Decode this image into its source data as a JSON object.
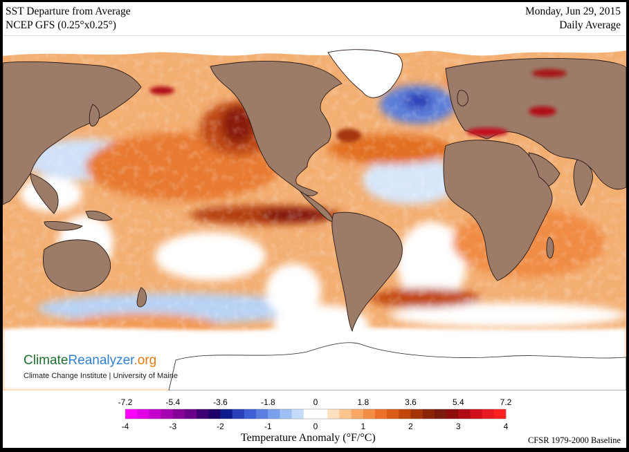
{
  "header": {
    "title_line1": "SST Departure from Average",
    "title_line2": "NCEP GFS (0.25°x0.25°)",
    "date": "Monday, Jun 29, 2015",
    "period": "Daily Average"
  },
  "branding": {
    "name_part1": "Climate",
    "name_part2": "Reanalyzer",
    "name_part3": ".org",
    "subtitle": "Climate Change Institute | University of Maine"
  },
  "legend": {
    "f_ticks": [
      "-7.2",
      "-5.4",
      "-3.6",
      "-1.8",
      "0",
      "1.8",
      "3.6",
      "5.4",
      "7.2"
    ],
    "c_ticks": [
      "-4",
      "-3",
      "-2",
      "-1",
      "0",
      "1",
      "2",
      "3",
      "4"
    ],
    "colors": [
      "#ff00ff",
      "#e100e6",
      "#c400cc",
      "#a500b0",
      "#860098",
      "#6a008a",
      "#3c0070",
      "#1d0068",
      "#0d1c8c",
      "#2a3fb8",
      "#3f5fd4",
      "#5a7fe0",
      "#7aa0ec",
      "#9fc0f5",
      "#c5dbfb",
      "#ffffff",
      "#ffffff",
      "#fde0bf",
      "#fbc58e",
      "#f8a866",
      "#f38c45",
      "#ec7028",
      "#d85a14",
      "#c2460a",
      "#a53508",
      "#8a2406",
      "#7a1a0a",
      "#8c0c0c",
      "#b00c14",
      "#d0101c",
      "#e81a22",
      "#ff2020"
    ],
    "title": "Temperature Anomaly (°F/°C)",
    "baseline": "CFSR 1979-2000 Baseline"
  },
  "palette": {
    "ocean_warm": "#f2a25e",
    "ocean_hot": "#c04a12",
    "ocean_extreme": "#7a1010",
    "ocean_neutral": "#ffffff",
    "ocean_cool": "#9cc0ec",
    "ocean_cold": "#2a3fb8",
    "land": "#9c7b68",
    "ice": "#ffffff"
  }
}
